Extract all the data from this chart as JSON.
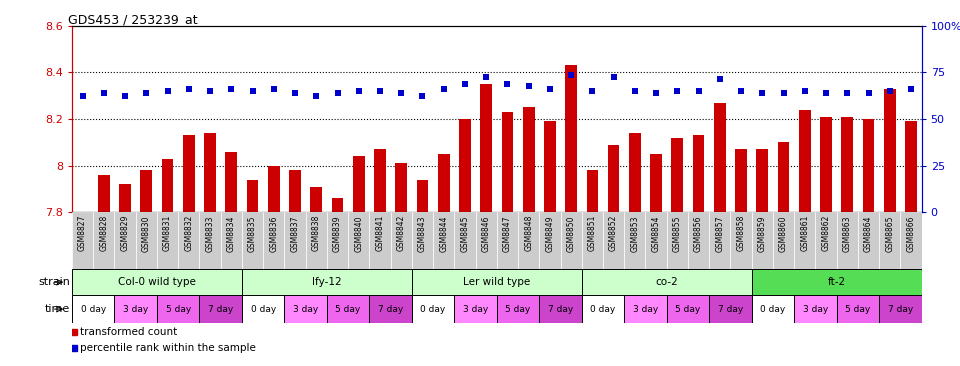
{
  "title": "GDS453 / 253239_at",
  "samples": [
    "GSM8827",
    "GSM8828",
    "GSM8829",
    "GSM8830",
    "GSM8831",
    "GSM8832",
    "GSM8833",
    "GSM8834",
    "GSM8835",
    "GSM8836",
    "GSM8837",
    "GSM8838",
    "GSM8839",
    "GSM8840",
    "GSM8841",
    "GSM8842",
    "GSM8843",
    "GSM8844",
    "GSM8845",
    "GSM8846",
    "GSM8847",
    "GSM8848",
    "GSM8849",
    "GSM8850",
    "GSM8851",
    "GSM8852",
    "GSM8853",
    "GSM8854",
    "GSM8855",
    "GSM8856",
    "GSM8857",
    "GSM8858",
    "GSM8859",
    "GSM8860",
    "GSM8861",
    "GSM8862",
    "GSM8863",
    "GSM8864",
    "GSM8865",
    "GSM8866"
  ],
  "bar_values": [
    7.8,
    7.96,
    7.92,
    7.98,
    8.03,
    8.13,
    8.14,
    8.06,
    7.94,
    8.0,
    7.98,
    7.91,
    7.86,
    8.04,
    8.07,
    8.01,
    7.94,
    8.05,
    8.2,
    8.35,
    8.23,
    8.25,
    8.19,
    8.43,
    7.98,
    8.09,
    8.14,
    8.05,
    8.12,
    8.13,
    8.27,
    8.07,
    8.07,
    8.1,
    8.24,
    8.21,
    8.21,
    8.2,
    8.33,
    8.19
  ],
  "dot_values": [
    8.3,
    8.31,
    8.3,
    8.31,
    8.32,
    8.33,
    8.32,
    8.33,
    8.32,
    8.33,
    8.31,
    8.3,
    8.31,
    8.32,
    8.32,
    8.31,
    8.3,
    8.33,
    8.35,
    8.38,
    8.35,
    8.34,
    8.33,
    8.39,
    8.32,
    8.38,
    8.32,
    8.31,
    8.32,
    8.32,
    8.37,
    8.32,
    8.31,
    8.31,
    8.32,
    8.31,
    8.31,
    8.31,
    8.32,
    8.33
  ],
  "ylim": [
    7.8,
    8.6
  ],
  "yticks": [
    7.8,
    8.0,
    8.2,
    8.4,
    8.6
  ],
  "ytick_labels": [
    "7.8",
    "8",
    "8.2",
    "8.4",
    "8.6"
  ],
  "right_yticks_pct": [
    0,
    25,
    50,
    75,
    100
  ],
  "right_ytick_labels": [
    "0",
    "25",
    "50",
    "75",
    "100%"
  ],
  "bar_color": "#cc0000",
  "dot_color": "#0000cc",
  "bg_color": "#ffffff",
  "axis_color": "#cc0000",
  "strains": [
    {
      "label": "Col-0 wild type",
      "start": 0,
      "end": 8,
      "color": "#ccffcc"
    },
    {
      "label": "lfy-12",
      "start": 8,
      "end": 16,
      "color": "#ccffcc"
    },
    {
      "label": "Ler wild type",
      "start": 16,
      "end": 24,
      "color": "#ccffcc"
    },
    {
      "label": "co-2",
      "start": 24,
      "end": 32,
      "color": "#ccffcc"
    },
    {
      "label": "ft-2",
      "start": 32,
      "end": 40,
      "color": "#55dd55"
    }
  ],
  "time_labels": [
    "0 day",
    "3 day",
    "5 day",
    "7 day",
    "0 day",
    "3 day",
    "5 day",
    "7 day",
    "0 day",
    "3 day",
    "5 day",
    "7 day",
    "0 day",
    "3 day",
    "5 day",
    "7 day",
    "0 day",
    "3 day",
    "5 day",
    "7 day"
  ],
  "time_colors": [
    "#ffffff",
    "#ff88ff",
    "#ee66ee",
    "#cc44cc",
    "#ffffff",
    "#ff88ff",
    "#ee66ee",
    "#cc44cc",
    "#ffffff",
    "#ff88ff",
    "#ee66ee",
    "#cc44cc",
    "#ffffff",
    "#ff88ff",
    "#ee66ee",
    "#cc44cc",
    "#ffffff",
    "#ff88ff",
    "#ee66ee",
    "#cc44cc"
  ],
  "n_bars": 40,
  "xtick_bg": "#cccccc",
  "grid_color": "#000000",
  "grid_style": "dotted"
}
